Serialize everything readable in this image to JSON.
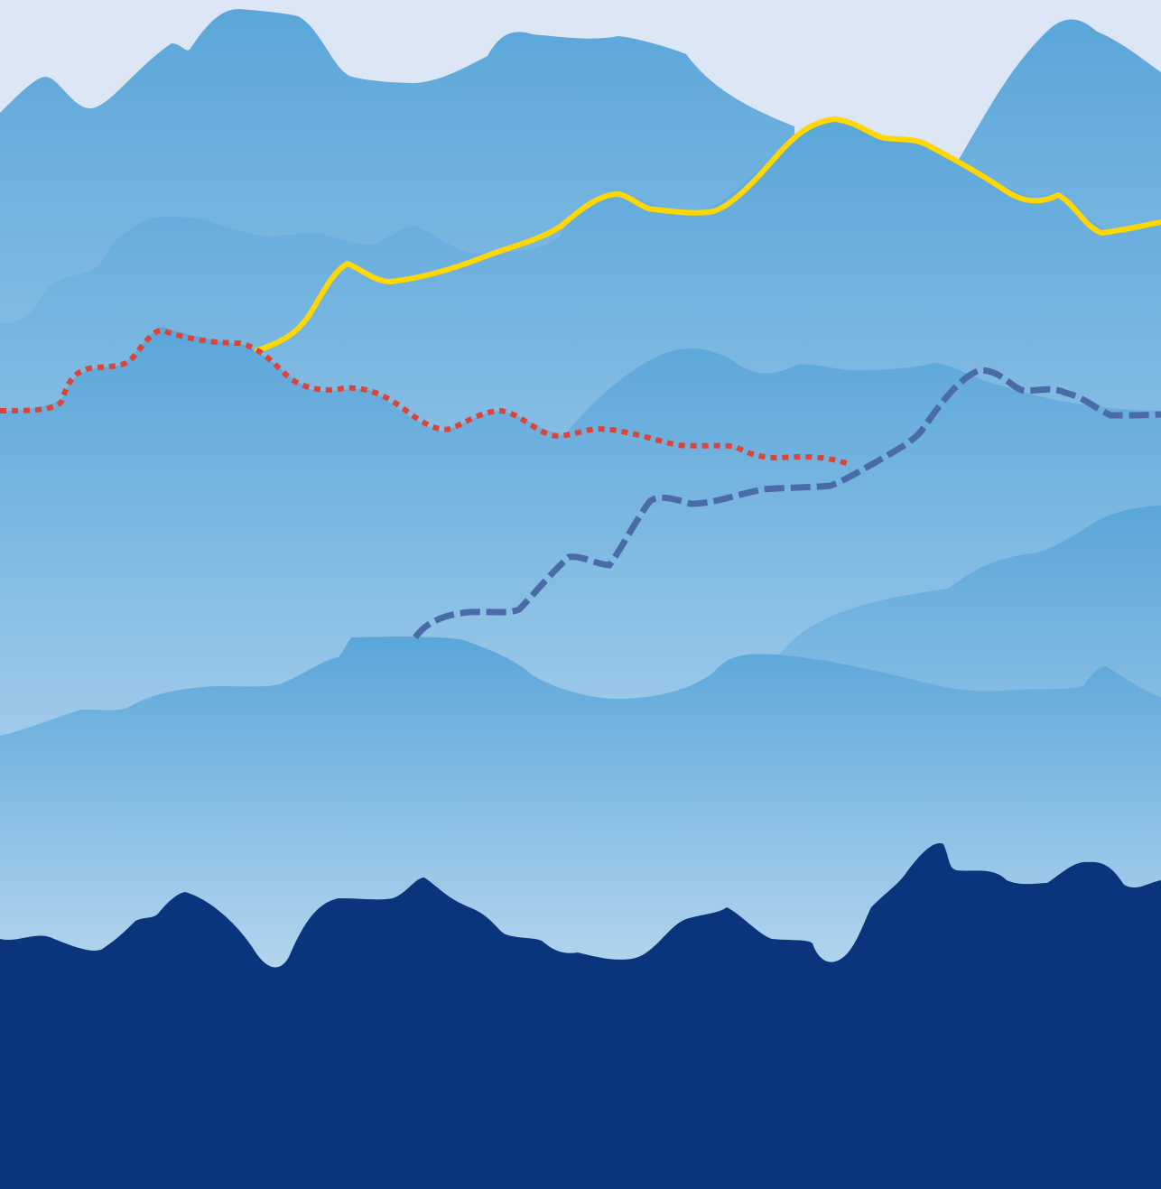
{
  "scene": {
    "sky_color": "#dce6f4",
    "ridge_top_color": "#5aa6da",
    "ridge_bottom_color": "#eef4fb",
    "foreground_color": "#0a347c"
  },
  "trails": [
    {
      "name": "yellow-trail",
      "color": "#ffd800",
      "style": "solid"
    },
    {
      "name": "red-trail",
      "color": "#d9453a",
      "style": "dotted"
    },
    {
      "name": "blue-trail",
      "color": "#4a6aa8",
      "style": "dashed"
    }
  ]
}
